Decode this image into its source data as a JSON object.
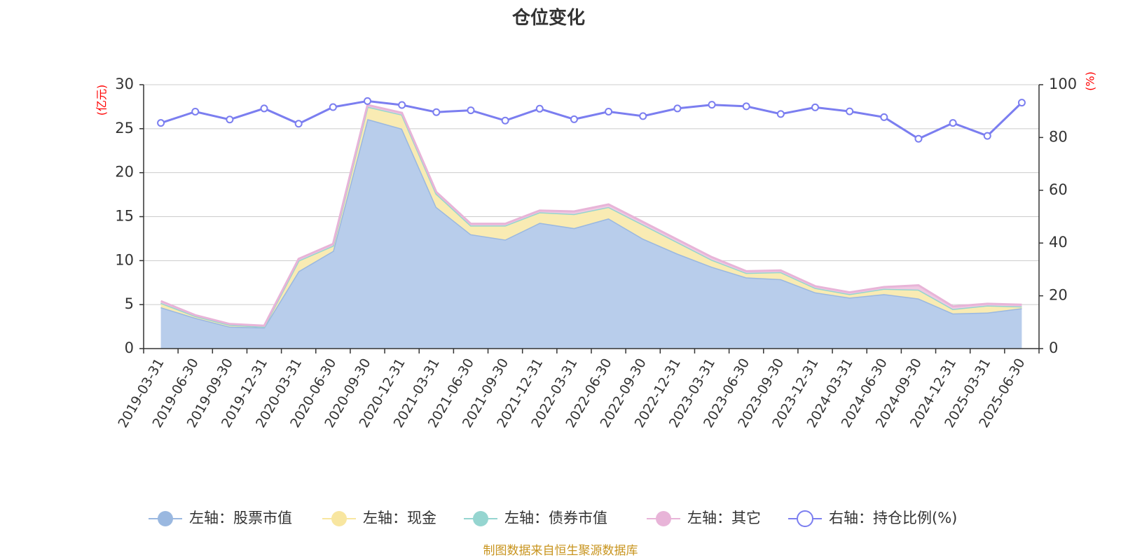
{
  "chart_data": {
    "type": "area",
    "title": "仓位变化",
    "source": "制图数据来自恒生聚源数据库",
    "left_axis": {
      "unit": "(亿元)",
      "ylim": [
        0,
        30
      ],
      "ticks": [
        "0",
        "5",
        "10",
        "15",
        "20",
        "25",
        "30"
      ]
    },
    "right_axis": {
      "unit": "(%)",
      "ylim": [
        0,
        100
      ],
      "ticks": [
        "0",
        "20",
        "40",
        "60",
        "80",
        "100"
      ]
    },
    "grid": true,
    "legend_position": "bottom",
    "categories": [
      "2019-03-31",
      "2019-06-30",
      "2019-09-30",
      "2019-12-31",
      "2020-03-31",
      "2020-06-30",
      "2020-09-30",
      "2020-12-31",
      "2021-03-31",
      "2021-06-30",
      "2021-09-30",
      "2021-12-31",
      "2022-03-31",
      "2022-06-30",
      "2022-09-30",
      "2022-12-31",
      "2023-03-31",
      "2023-06-30",
      "2023-09-30",
      "2023-12-31",
      "2024-03-31",
      "2024-06-30",
      "2024-09-30",
      "2024-12-31",
      "2025-03-31",
      "2025-06-30"
    ],
    "series": [
      {
        "name": "左轴：股票市值",
        "axis": "left",
        "stack": true,
        "color": "#9ab8e0",
        "fill": "#b8cdeb",
        "values": [
          4.7,
          3.5,
          2.5,
          2.4,
          8.8,
          11.1,
          26.1,
          25.0,
          16.1,
          13.0,
          12.4,
          14.3,
          13.7,
          14.8,
          12.5,
          10.8,
          9.3,
          8.1,
          7.9,
          6.4,
          5.8,
          6.2,
          5.7,
          4.0,
          4.1,
          4.6
        ]
      },
      {
        "name": "左轴：现金",
        "axis": "left",
        "stack": true,
        "color": "#f8e6a0",
        "fill": "#f9ebb3",
        "values": [
          0.5,
          0.2,
          0.2,
          0.1,
          1.2,
          0.6,
          1.4,
          1.6,
          1.5,
          1.0,
          1.6,
          1.2,
          1.6,
          1.3,
          1.6,
          1.3,
          0.8,
          0.5,
          0.8,
          0.5,
          0.4,
          0.6,
          1.0,
          0.5,
          0.8,
          0.2
        ]
      },
      {
        "name": "左轴：债券市值",
        "axis": "left",
        "stack": true,
        "color": "#95d5d0",
        "fill": "#95d5d0",
        "values": [
          0,
          0,
          0,
          0,
          0,
          0,
          0,
          0,
          0,
          0,
          0,
          0,
          0,
          0,
          0,
          0,
          0,
          0,
          0,
          0,
          0,
          0,
          0,
          0,
          0,
          0
        ]
      },
      {
        "name": "左轴：其它",
        "axis": "left",
        "stack": true,
        "color": "#e8b4d8",
        "fill": "#efc9e2",
        "values": [
          0.2,
          0.1,
          0.1,
          0.1,
          0.2,
          0.2,
          0.2,
          0.2,
          0.2,
          0.2,
          0.2,
          0.2,
          0.3,
          0.3,
          0.3,
          0.3,
          0.3,
          0.2,
          0.2,
          0.2,
          0.2,
          0.2,
          0.5,
          0.3,
          0.2,
          0.2
        ]
      },
      {
        "name": "右轴：持仓比例(%)",
        "axis": "right",
        "stack": false,
        "color": "#7b7ef0",
        "fill": "#ffffff",
        "values": [
          85.5,
          89.8,
          86.8,
          91.0,
          85.2,
          91.5,
          93.8,
          92.3,
          89.6,
          90.3,
          86.4,
          90.9,
          86.9,
          89.8,
          88.1,
          91.0,
          92.4,
          91.8,
          88.9,
          91.4,
          89.9,
          87.7,
          79.5,
          85.5,
          80.6,
          93.2
        ]
      }
    ]
  }
}
